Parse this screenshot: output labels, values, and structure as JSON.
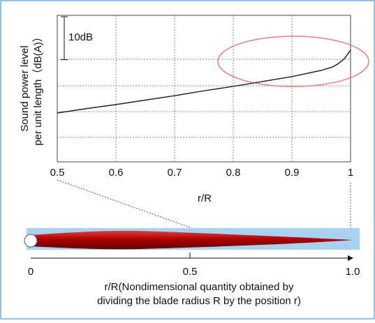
{
  "chart_data": {
    "type": "line",
    "y_label_lines": [
      "Sound power level",
      "per unit length（dB(A)）"
    ],
    "x_label": "r/R",
    "x": [
      0.5,
      0.55,
      0.6,
      0.65,
      0.7,
      0.75,
      0.8,
      0.85,
      0.9,
      0.95,
      0.97,
      0.98,
      0.99,
      1.0
    ],
    "series": [
      {
        "color": "#222222",
        "values": [
          11.0,
          12.0,
          12.9,
          13.9,
          14.9,
          16.0,
          17.0,
          18.1,
          19.2,
          20.6,
          21.4,
          22.2,
          23.3,
          25.2
        ]
      }
    ],
    "xlim": [
      0.5,
      1.0
    ],
    "xticks": [
      0.5,
      0.6,
      0.7,
      0.8,
      0.9,
      1
    ],
    "ylim": [
      0,
      33
    ],
    "grid": true,
    "scale_bar": {
      "value": 10,
      "label": "10dB"
    }
  },
  "diagram": {
    "ticks": [
      0,
      0.5,
      {
        "value": 1,
        "label": "1.0"
      }
    ],
    "caption_lines": [
      "r/R(Nondimensional quantity obtained by",
      "dividing the blade radius R by the position r)"
    ]
  }
}
